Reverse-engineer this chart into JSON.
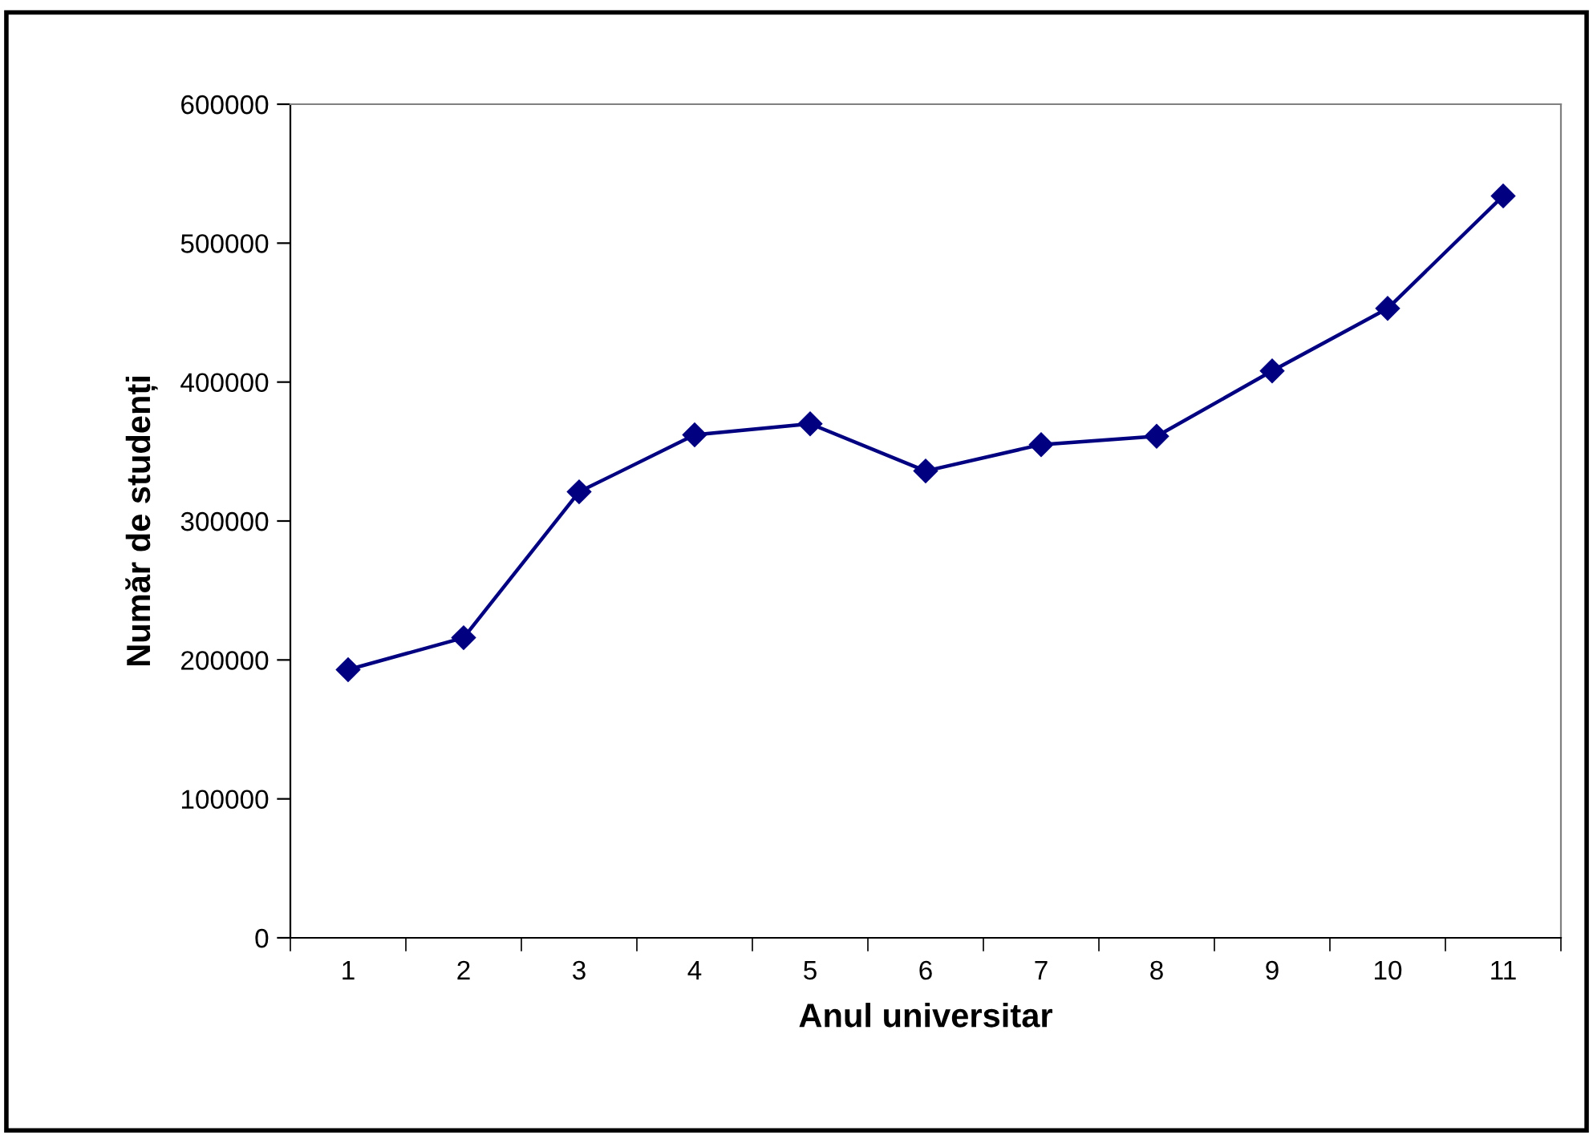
{
  "chart_data": {
    "type": "line",
    "xlabel": "Anul universitar",
    "ylabel": "Număr de studenți",
    "categories": [
      "1",
      "2",
      "3",
      "4",
      "5",
      "6",
      "7",
      "8",
      "9",
      "10",
      "11"
    ],
    "series": [
      {
        "color": "#000080",
        "values": [
          193000,
          216000,
          321000,
          362000,
          370000,
          336000,
          355000,
          361000,
          408000,
          453000,
          534000
        ]
      }
    ],
    "ylim": [
      0,
      600000
    ],
    "yticks": [
      0,
      100000,
      200000,
      300000,
      400000,
      500000,
      600000
    ],
    "marker": "diamond",
    "line_style": "solid",
    "grid": false,
    "legend": false
  }
}
